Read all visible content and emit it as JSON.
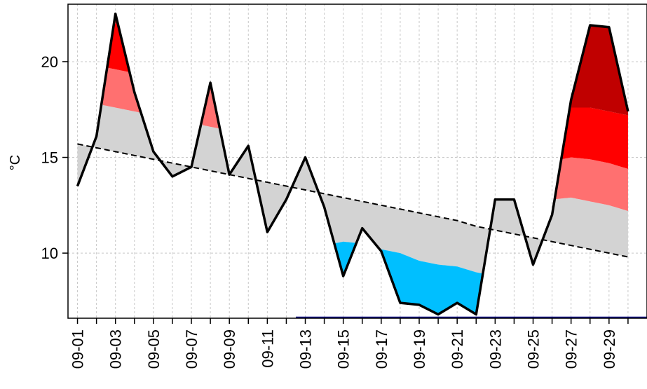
{
  "chart_data": {
    "type": "area",
    "ylabel": "°C",
    "ylim": [
      6.6,
      23.0
    ],
    "yticks": [
      10,
      15,
      20
    ],
    "xticks": [
      "09-01",
      "09-03",
      "09-05",
      "09-07",
      "09-09",
      "09-11",
      "09-13",
      "09-15",
      "09-17",
      "09-19",
      "09-21",
      "09-23",
      "09-25",
      "09-27",
      "09-29"
    ],
    "grid": true,
    "x": [
      1,
      2,
      3,
      4,
      5,
      6,
      7,
      8,
      9,
      10,
      11,
      12,
      13,
      14,
      15,
      16,
      17,
      18,
      19,
      20,
      21,
      22,
      23,
      24,
      25,
      26,
      27,
      28,
      29,
      30
    ],
    "series": [
      {
        "role": "temperature",
        "line": "solid",
        "values": [
          13.5,
          16.1,
          22.5,
          18.4,
          15.3,
          14.0,
          14.5,
          18.9,
          14.1,
          15.6,
          11.1,
          12.8,
          15.0,
          12.4,
          8.8,
          11.3,
          10.1,
          7.4,
          7.3,
          6.8,
          7.4,
          6.8,
          12.8,
          12.8,
          9.4,
          12.0,
          18.0,
          21.9,
          21.8,
          17.4
        ]
      },
      {
        "role": "climatology",
        "line": "dashed",
        "values": [
          15.7,
          15.5,
          15.3,
          15.1,
          14.9,
          14.7,
          14.5,
          14.3,
          14.1,
          13.9,
          13.7,
          13.5,
          13.3,
          13.1,
          12.9,
          12.7,
          12.5,
          12.3,
          12.1,
          11.9,
          11.7,
          11.4,
          11.2,
          11.0,
          10.8,
          10.6,
          10.4,
          10.2,
          10.0,
          9.8
        ]
      },
      {
        "role": "threshold-1",
        "line": "none",
        "values": [
          17.9,
          17.8,
          17.6,
          17.4,
          17.2,
          17.0,
          16.8,
          16.6,
          16.4,
          16.2,
          16.0,
          15.8,
          15.6,
          15.4,
          15.2,
          15.0,
          14.8,
          14.6,
          14.4,
          14.2,
          14.0,
          13.7,
          13.4,
          13.2,
          13.0,
          12.8,
          12.9,
          12.7,
          12.5,
          12.2
        ]
      },
      {
        "role": "threshold-2",
        "line": "none",
        "values": [
          20.0,
          19.8,
          19.6,
          19.4,
          19.2,
          19.0,
          18.8,
          18.6,
          18.4,
          18.2,
          18.0,
          17.8,
          17.6,
          17.4,
          17.2,
          17.0,
          16.8,
          16.6,
          16.4,
          16.2,
          16.0,
          15.7,
          15.4,
          15.2,
          15.0,
          14.8,
          15.0,
          14.9,
          14.7,
          14.4
        ]
      },
      {
        "role": "threshold-3",
        "line": "none",
        "values": [
          22.4,
          22.2,
          22.0,
          21.8,
          21.6,
          21.4,
          21.2,
          21.0,
          20.8,
          20.6,
          20.4,
          20.2,
          20.0,
          19.8,
          19.6,
          19.4,
          19.2,
          19.0,
          18.8,
          18.6,
          18.4,
          18.1,
          17.8,
          17.6,
          17.4,
          17.2,
          17.6,
          17.6,
          17.4,
          17.2
        ]
      },
      {
        "role": "threshold-cold-1",
        "line": "none",
        "values": [
          13.0,
          12.8,
          12.6,
          12.4,
          12.2,
          12.0,
          11.8,
          11.6,
          11.4,
          11.2,
          11.0,
          10.8,
          10.6,
          10.4,
          10.6,
          10.5,
          10.2,
          10.0,
          9.6,
          9.4,
          9.3,
          9.0,
          8.8,
          8.6,
          8.4,
          8.2,
          8.0,
          7.8,
          7.6,
          7.4
        ]
      }
    ],
    "colors": {
      "normal_band": "#d3d3d3",
      "warm1": "#ff7070",
      "warm2": "#ff0000",
      "warm3": "#c00000",
      "cold1": "#00bfff",
      "cold2": "#1e90ff",
      "line": "#000000",
      "grid": "#c8c8c8",
      "baseline": "#00008b"
    }
  }
}
